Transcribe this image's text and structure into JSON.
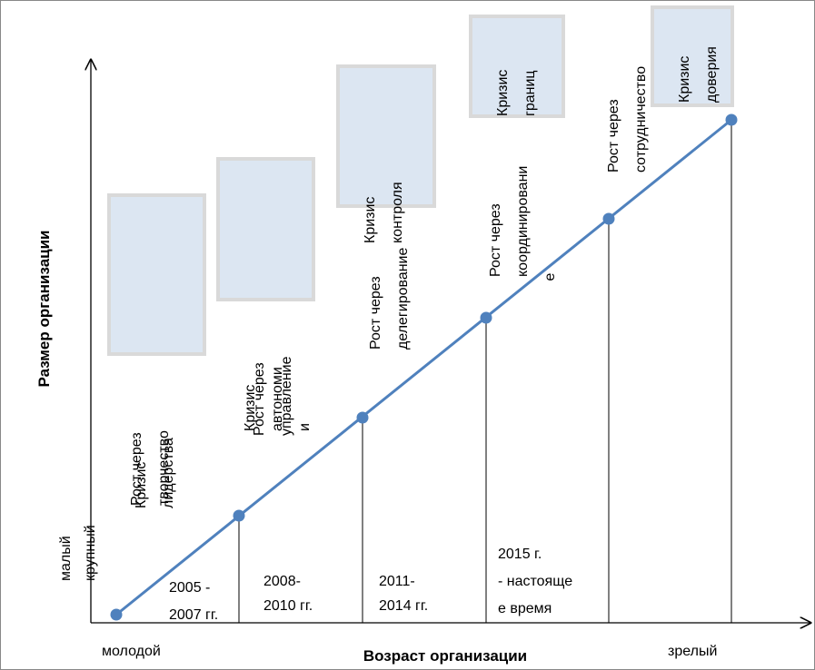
{
  "axes": {
    "y_label": "Размер организации",
    "x_label": "Возраст организации",
    "x_start": "молодой",
    "x_end": "зрелый",
    "y_low": "малый",
    "y_high": "крупный"
  },
  "stages": [
    {
      "growth": [
        "Рост  через",
        "творчество"
      ],
      "crisis": [
        "Кризис",
        "лидерства"
      ],
      "period": [
        "2005 -",
        "2007 гг."
      ]
    },
    {
      "growth": [
        "Рост  через",
        "управление"
      ],
      "crisis": [
        "Кризис",
        "автономи",
        "и"
      ],
      "period": [
        "2008-",
        "2010 гг."
      ]
    },
    {
      "growth": [
        "Рост  через",
        "делегирование"
      ],
      "crisis": [
        "Кризис",
        "контроля"
      ],
      "period": [
        "2011-",
        "2014 гг."
      ]
    },
    {
      "growth": [
        "Рост  через",
        "координировани",
        "е"
      ],
      "crisis": [
        "Кризис",
        "границ"
      ],
      "period": [
        "2015 г.",
        "- настояще",
        "е время"
      ]
    },
    {
      "growth": [
        "Рост  через",
        "сотрудничество"
      ],
      "crisis": [
        "Кризис",
        "доверия"
      ]
    }
  ]
}
